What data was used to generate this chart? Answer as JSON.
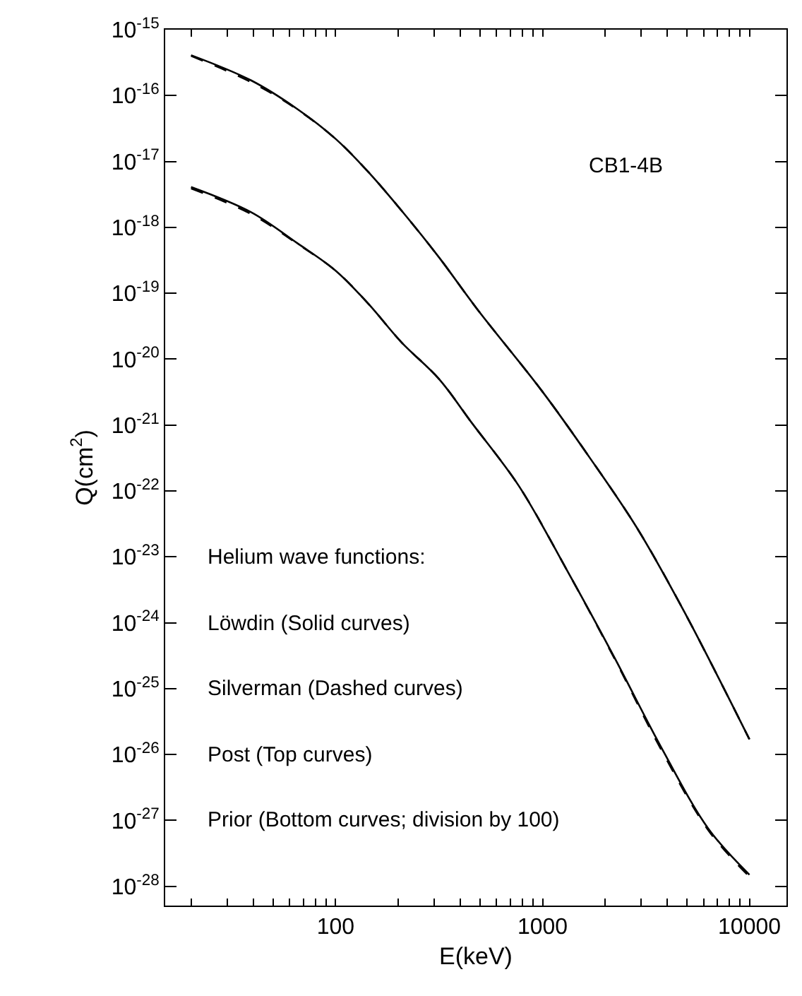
{
  "chart_data": {
    "type": "line",
    "xlabel": "E(keV)",
    "ylabel": "Q(cm$^{2}$)",
    "log": "xy",
    "marker": "none",
    "xlim": [
      15,
      15100
    ],
    "ylim": [
      5.1e-29,
      1e-15
    ],
    "xticks": [
      {
        "value": 20,
        "label": null
      },
      {
        "value": 30,
        "label": null
      },
      {
        "value": 40,
        "label": null
      },
      {
        "value": 50,
        "label": null
      },
      {
        "value": 60,
        "label": null
      },
      {
        "value": 70,
        "label": null
      },
      {
        "value": 80,
        "label": null
      },
      {
        "value": 90,
        "label": null
      },
      100,
      {
        "value": 200,
        "label": null
      },
      {
        "value": 300,
        "label": null
      },
      {
        "value": 400,
        "label": null
      },
      {
        "value": 500,
        "label": null
      },
      {
        "value": 600,
        "label": null
      },
      {
        "value": 700,
        "label": null
      },
      {
        "value": 800,
        "label": null
      },
      {
        "value": 900,
        "label": null
      },
      1000,
      {
        "value": 2000,
        "label": null
      },
      {
        "value": 3000,
        "label": null
      },
      {
        "value": 4000,
        "label": null
      },
      {
        "value": 5000,
        "label": null
      },
      {
        "value": 6000,
        "label": null
      },
      {
        "value": 7000,
        "label": null
      },
      {
        "value": 8000,
        "label": null
      },
      {
        "value": 9000,
        "label": null
      },
      10000
    ],
    "yticks": [
      {
        "value": 1e-15,
        "label": "10$^{-15}$"
      },
      {
        "value": 1e-16,
        "label": "10$^{-16}$"
      },
      {
        "value": 1e-17,
        "label": "10$^{-17}$"
      },
      {
        "value": 1e-18,
        "label": "10$^{-18}$"
      },
      {
        "value": 1e-19,
        "label": "10$^{-19}$"
      },
      {
        "value": 1e-20,
        "label": "10$^{-20}$"
      },
      {
        "value": 1e-21,
        "label": "10$^{-21}$"
      },
      {
        "value": 1e-22,
        "label": "10$^{-22}$"
      },
      {
        "value": 1e-23,
        "label": "10$^{-23}$"
      },
      {
        "value": 1e-24,
        "label": "10$^{-24}$"
      },
      {
        "value": 1e-25,
        "label": "10$^{-25}$"
      },
      {
        "value": 1e-26,
        "label": "10$^{-26}$"
      },
      {
        "value": 1e-27,
        "label": "10$^{-27}$"
      },
      {
        "value": 1e-28,
        "label": "10$^{-28}$"
      }
    ],
    "annotations": [
      "CB1-4B",
      "Helium wave functions:",
      "Löwdin (Solid curves)",
      "Silverman (Dashed curves)",
      "Post (Top curves)",
      "Prior (Bottom curves; division by 100)"
    ],
    "series": [
      {
        "color": "#000000",
        "line_style": "solid",
        "x": [
          20,
          39,
          65,
          100,
          144,
          208,
          316,
          482,
          1000,
          1690,
          2870,
          4880,
          10000
        ],
        "values": [
          4.1e-16,
          1.7e-16,
          6.3e-17,
          2.2e-17,
          6.9e-18,
          1.8e-18,
          3.5e-19,
          5.8e-20,
          3.2e-21,
          3.2e-22,
          2.7e-23,
          1.4e-24,
          1.7e-26
        ]
      },
      {
        "color": "#000000",
        "line_style": "dashed",
        "x": [
          20,
          39,
          65,
          100,
          144,
          208,
          316,
          482,
          1000,
          1690,
          2870,
          4880,
          10000
        ],
        "values": [
          4e-16,
          1.6e-16,
          6.2e-17,
          2.2e-17,
          6.9e-18,
          1.8e-18,
          3.5e-19,
          5.8e-20,
          3.2e-21,
          3.2e-22,
          2.7e-23,
          1.4e-24,
          1.7e-26
        ]
      },
      {
        "color": "#000000",
        "line_style": "solid",
        "x": [
          20,
          39,
          65,
          100,
          144,
          208,
          316,
          453,
          767,
          1300,
          2210,
          3740,
          6350,
          10000
        ],
        "values": [
          4.1e-18,
          1.7e-18,
          5.8e-19,
          2.2e-19,
          6.9e-20,
          1.8e-20,
          5e-21,
          1.1e-21,
          1.2e-22,
          6.6e-24,
          3.1e-25,
          1.3e-26,
          7.4e-28,
          1.5e-28
        ]
      },
      {
        "color": "#000000",
        "line_style": "dashed",
        "x": [
          20,
          39,
          65,
          100,
          144,
          208,
          316,
          453,
          767,
          1300,
          2210,
          3740,
          6350,
          10000
        ],
        "values": [
          3.9e-18,
          1.6e-18,
          5.7e-19,
          2.2e-19,
          6.9e-20,
          1.8e-20,
          5e-21,
          1.1e-21,
          1.2e-22,
          6.6e-24,
          3e-25,
          1.2e-26,
          7e-28,
          1.4e-28
        ]
      }
    ]
  }
}
